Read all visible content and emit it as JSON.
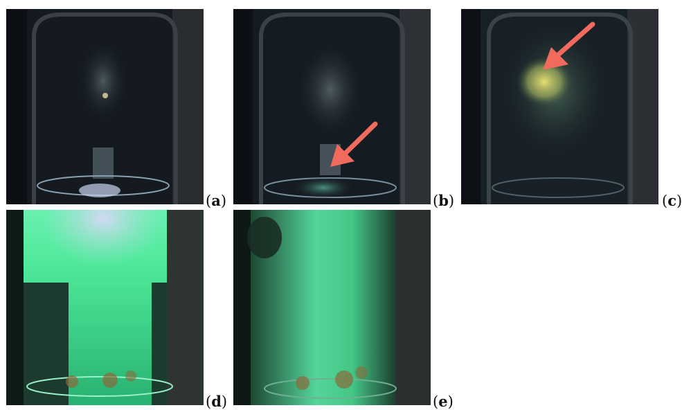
{
  "figure": {
    "panels": [
      {
        "id": "a",
        "label_open": "(",
        "label_letter": "a",
        "label_close": ")",
        "scene": "faint-glow-top",
        "arrow": false
      },
      {
        "id": "b",
        "label_open": "(",
        "label_letter": "b",
        "label_close": ")",
        "scene": "glow-at-base",
        "arrow": true,
        "arrow_color": "#f06a5e"
      },
      {
        "id": "c",
        "label_open": "(",
        "label_letter": "c",
        "label_close": ")",
        "scene": "yellow-spot-center",
        "arrow": true,
        "arrow_color": "#f06a5e"
      },
      {
        "id": "d",
        "label_open": "(",
        "label_letter": "d",
        "label_close": ")",
        "scene": "bright-green-discharge",
        "arrow": false
      },
      {
        "id": "e",
        "label_open": "(",
        "label_letter": "e",
        "label_close": ")",
        "scene": "green-column-discharge",
        "arrow": false
      }
    ],
    "colors": {
      "background": "#ffffff",
      "glass_dark": "#14191f",
      "discharge_green": "#3fd98a",
      "arrow": "#f06a5e"
    }
  }
}
